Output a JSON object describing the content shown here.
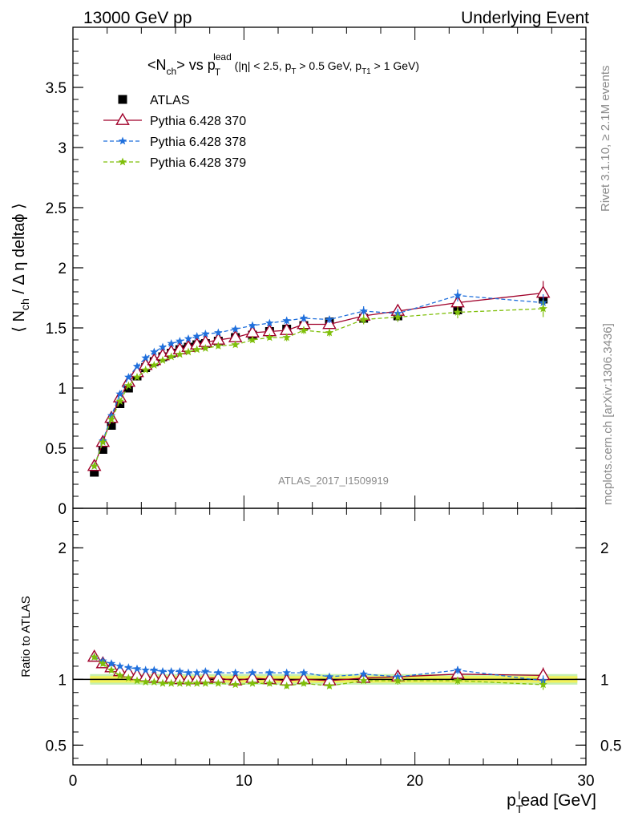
{
  "header": {
    "left": "13000 GeV pp",
    "right": "Underlying Event"
  },
  "side_labels": {
    "rivet": "Rivet 3.1.10, ≥ 2.1M events",
    "mcplots": "mcplots.cern.ch [arXiv:1306.3436]"
  },
  "watermark": "ATLAS_2017_I1509919",
  "chart_data": [
    {
      "type": "scatter",
      "panel": "main",
      "title": "<N_ch> vs p_T^lead (|η| < 2.5, p_T > 0.5 GeV, p_T1 > 1 GeV)",
      "title_parts": {
        "a": "<N",
        "a_sub": "ch",
        "b": "> vs p",
        "b_sub": "T",
        "b_sup": "lead",
        "c": " (|η| < 2.5, p",
        "c_sub": "T",
        "d": " > 0.5 GeV, p",
        "d_sub": "T1",
        "e": " > 1 GeV)"
      },
      "ylabel": "⟨ N_ch / Δη deltaϕ ⟩",
      "ylabel_parts": {
        "pre": "⟨ N",
        "sub": "ch",
        "post": " / Δ η deltaϕ ⟩"
      },
      "xlim": [
        0,
        30
      ],
      "ylim": [
        0,
        4
      ],
      "yticks": [
        0,
        0.5,
        1,
        1.5,
        2,
        2.5,
        3,
        3.5
      ],
      "ytick_labels": [
        "0",
        "0.5",
        "1",
        "1.5",
        "2",
        "2.5",
        "3",
        "3.5"
      ],
      "legend_position": "top-left",
      "x": [
        1.25,
        1.75,
        2.25,
        2.75,
        3.25,
        3.75,
        4.25,
        4.75,
        5.25,
        5.75,
        6.25,
        6.75,
        7.25,
        7.75,
        8.5,
        9.5,
        10.5,
        11.5,
        12.5,
        13.5,
        15.0,
        17.0,
        19.0,
        22.5,
        27.5
      ],
      "series": [
        {
          "name": "ATLAS",
          "color": "#000000",
          "marker": "square",
          "line": "none",
          "values": [
            0.3,
            0.49,
            0.69,
            0.87,
            1.0,
            1.1,
            1.17,
            1.22,
            1.26,
            1.29,
            1.32,
            1.34,
            1.36,
            1.37,
            1.39,
            1.42,
            1.44,
            1.47,
            1.49,
            1.52,
            1.55,
            1.58,
            1.6,
            1.65,
            1.74
          ],
          "errors": [
            0.01,
            0.01,
            0.01,
            0.01,
            0.01,
            0.01,
            0.01,
            0.01,
            0.01,
            0.01,
            0.01,
            0.01,
            0.01,
            0.01,
            0.01,
            0.01,
            0.02,
            0.02,
            0.02,
            0.02,
            0.02,
            0.03,
            0.03,
            0.04,
            0.05
          ]
        },
        {
          "name": "Pythia 6.428 370",
          "color": "#a0002a",
          "marker": "triangle-open",
          "line": "solid",
          "values": [
            0.35,
            0.55,
            0.75,
            0.92,
            1.05,
            1.13,
            1.19,
            1.23,
            1.27,
            1.3,
            1.32,
            1.34,
            1.36,
            1.38,
            1.4,
            1.42,
            1.46,
            1.47,
            1.48,
            1.53,
            1.53,
            1.6,
            1.64,
            1.71,
            1.79
          ],
          "errors": [
            0.01,
            0.01,
            0.01,
            0.01,
            0.01,
            0.01,
            0.01,
            0.01,
            0.01,
            0.01,
            0.01,
            0.01,
            0.01,
            0.01,
            0.02,
            0.02,
            0.02,
            0.02,
            0.03,
            0.03,
            0.03,
            0.04,
            0.04,
            0.06,
            0.1
          ]
        },
        {
          "name": "Pythia 6.428 378",
          "color": "#1f6fdc",
          "marker": "star",
          "line": "dashed",
          "values": [
            0.35,
            0.56,
            0.77,
            0.95,
            1.09,
            1.18,
            1.25,
            1.3,
            1.34,
            1.37,
            1.39,
            1.41,
            1.43,
            1.45,
            1.46,
            1.49,
            1.52,
            1.54,
            1.56,
            1.58,
            1.57,
            1.64,
            1.62,
            1.77,
            1.71
          ],
          "errors": [
            0.01,
            0.01,
            0.01,
            0.01,
            0.01,
            0.01,
            0.01,
            0.01,
            0.01,
            0.01,
            0.01,
            0.01,
            0.01,
            0.01,
            0.02,
            0.02,
            0.02,
            0.02,
            0.03,
            0.03,
            0.03,
            0.04,
            0.04,
            0.05,
            0.07
          ]
        },
        {
          "name": "Pythia 6.428 379",
          "color": "#7fbf0a",
          "marker": "star",
          "line": "dashed",
          "values": [
            0.35,
            0.55,
            0.74,
            0.89,
            1.02,
            1.09,
            1.15,
            1.19,
            1.23,
            1.26,
            1.28,
            1.3,
            1.32,
            1.33,
            1.35,
            1.36,
            1.4,
            1.42,
            1.42,
            1.48,
            1.46,
            1.57,
            1.59,
            1.63,
            1.66
          ],
          "errors": [
            0.01,
            0.01,
            0.01,
            0.01,
            0.01,
            0.01,
            0.01,
            0.01,
            0.01,
            0.01,
            0.01,
            0.01,
            0.01,
            0.01,
            0.02,
            0.02,
            0.02,
            0.02,
            0.03,
            0.03,
            0.03,
            0.04,
            0.04,
            0.05,
            0.07
          ]
        }
      ]
    },
    {
      "type": "scatter",
      "panel": "ratio",
      "ylabel": "Ratio to ATLAS",
      "xlabel": "p_T^l ead [GeV]",
      "xlabel_parts": {
        "pre": "p",
        "sub": "T",
        "sup": "l",
        "post": "ead [GeV]"
      },
      "xlim": [
        0,
        30
      ],
      "ylim": [
        0.35,
        2.3
      ],
      "yticks": [
        0.5,
        1,
        2
      ],
      "ytick_labels": [
        "0.5",
        "1",
        "2"
      ],
      "xticks": [
        0,
        10,
        20,
        30
      ],
      "xtick_labels": [
        "0",
        "10",
        "20",
        "30"
      ],
      "x": [
        1.25,
        1.75,
        2.25,
        2.75,
        3.25,
        3.75,
        4.25,
        4.75,
        5.25,
        5.75,
        6.25,
        6.75,
        7.25,
        7.75,
        8.5,
        9.5,
        10.5,
        11.5,
        12.5,
        13.5,
        15.0,
        17.0,
        19.0,
        22.5,
        27.5
      ],
      "band": {
        "inner": 0.025,
        "outer": 0.04,
        "inner_color": "#f2f25a",
        "outer_color": "#c5f0b0"
      },
      "series": [
        {
          "name": "Pythia 6.428 370",
          "color": "#a0002a",
          "marker": "triangle-open",
          "line": "solid",
          "values": [
            1.17,
            1.12,
            1.09,
            1.06,
            1.05,
            1.03,
            1.02,
            1.01,
            1.01,
            1.01,
            1.0,
            1.0,
            1.0,
            1.01,
            1.01,
            0.99,
            1.01,
            1.0,
            0.99,
            1.0,
            0.99,
            1.01,
            1.02,
            1.04,
            1.03
          ],
          "errors": [
            0.02,
            0.02,
            0.02,
            0.01,
            0.01,
            0.01,
            0.01,
            0.01,
            0.01,
            0.01,
            0.01,
            0.01,
            0.01,
            0.01,
            0.01,
            0.01,
            0.01,
            0.02,
            0.02,
            0.02,
            0.02,
            0.02,
            0.03,
            0.03,
            0.06
          ]
        },
        {
          "name": "Pythia 6.428 378",
          "color": "#1f6fdc",
          "marker": "star",
          "line": "dashed",
          "values": [
            1.17,
            1.14,
            1.12,
            1.1,
            1.09,
            1.08,
            1.07,
            1.07,
            1.06,
            1.06,
            1.06,
            1.05,
            1.05,
            1.06,
            1.05,
            1.05,
            1.05,
            1.05,
            1.05,
            1.05,
            1.02,
            1.04,
            1.02,
            1.07,
            0.99
          ],
          "errors": [
            0.02,
            0.02,
            0.02,
            0.01,
            0.01,
            0.01,
            0.01,
            0.01,
            0.01,
            0.01,
            0.01,
            0.01,
            0.01,
            0.01,
            0.01,
            0.01,
            0.01,
            0.02,
            0.02,
            0.02,
            0.02,
            0.02,
            0.03,
            0.03,
            0.04
          ]
        },
        {
          "name": "Pythia 6.428 379",
          "color": "#7fbf0a",
          "marker": "star",
          "line": "dashed",
          "values": [
            1.17,
            1.12,
            1.07,
            1.03,
            1.01,
            0.99,
            0.98,
            0.98,
            0.97,
            0.97,
            0.97,
            0.97,
            0.97,
            0.97,
            0.97,
            0.96,
            0.97,
            0.97,
            0.95,
            0.97,
            0.95,
            0.99,
            0.99,
            0.99,
            0.96
          ],
          "errors": [
            0.02,
            0.02,
            0.02,
            0.01,
            0.01,
            0.01,
            0.01,
            0.01,
            0.01,
            0.01,
            0.01,
            0.01,
            0.01,
            0.01,
            0.01,
            0.01,
            0.01,
            0.02,
            0.02,
            0.02,
            0.02,
            0.02,
            0.03,
            0.03,
            0.04
          ]
        }
      ]
    }
  ]
}
